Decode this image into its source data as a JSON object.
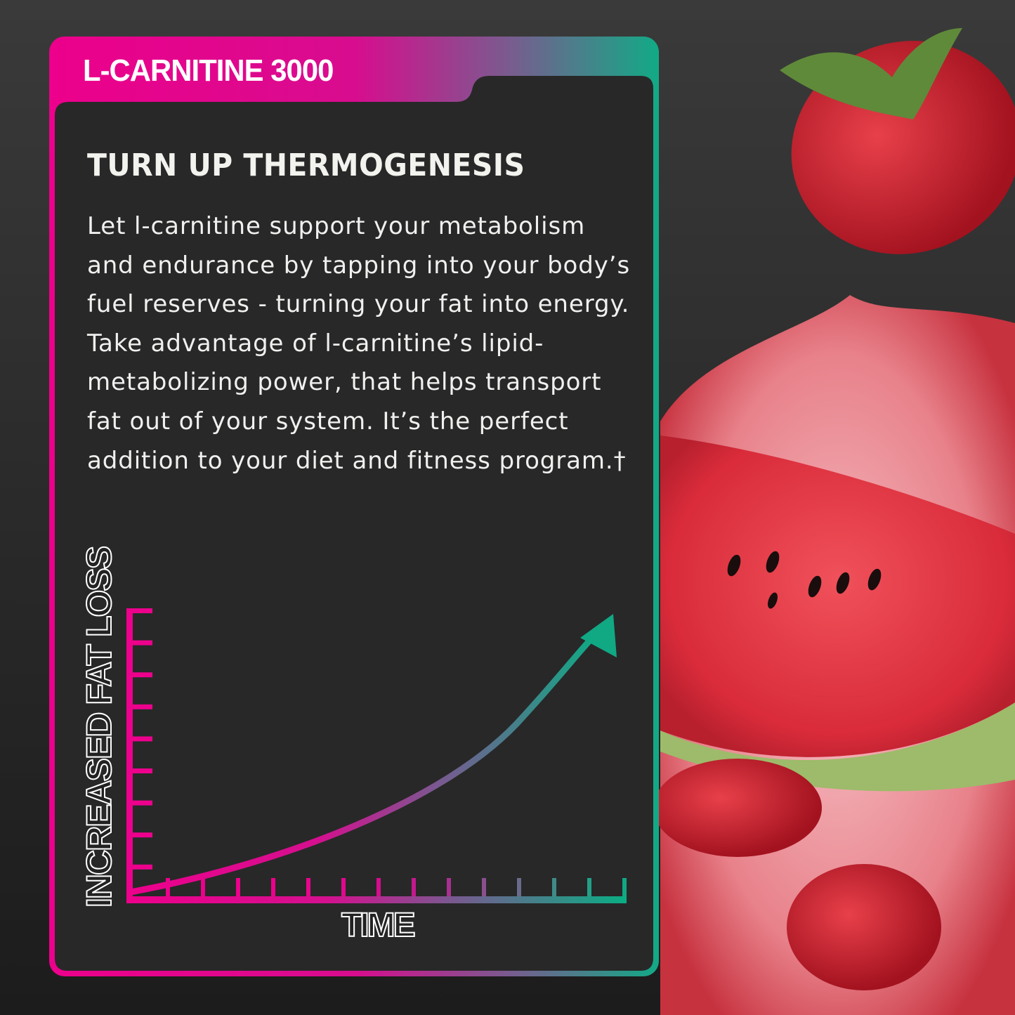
{
  "card": {
    "product_name": "L-CARNITINE 3000",
    "heading": "TURN UP THERMOGENESIS",
    "body": "Let l-carnitine support your metabolism and endurance by tapping into your body’s fuel reserves - turning your fat into energy. Take advantage of l-carnitine’s lipid-metabolizing power, that helps transport fat out of your system. It’s the perfect addition to your diet and fitness program.†"
  },
  "graphic": {
    "y_axis_label": "INCREASED FAT LOSS",
    "x_axis_label": "TIME",
    "trend": "rising exponential curve with arrow",
    "colors": {
      "pink": "#ec008c",
      "purple": "#8a4f8e",
      "teal": "#11a884",
      "panel": "#282828"
    }
  },
  "imagery": [
    "strawberry",
    "watermelon slice",
    "juice splash"
  ]
}
